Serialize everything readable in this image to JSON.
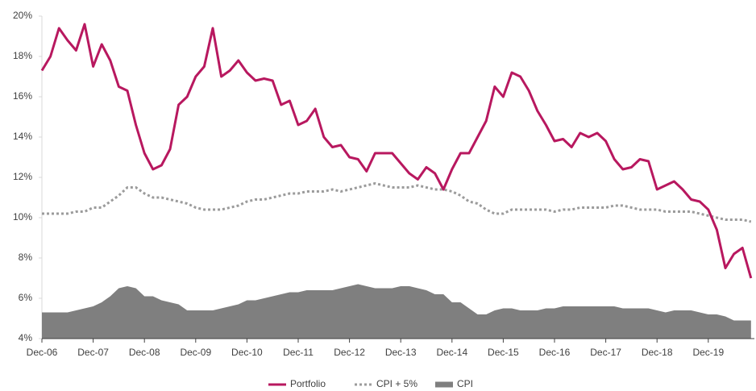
{
  "chart_data": {
    "type": "line",
    "categories": [
      "Dec-06",
      null,
      null,
      null,
      null,
      null,
      "Dec-07",
      null,
      null,
      null,
      null,
      null,
      "Dec-08",
      null,
      null,
      null,
      null,
      null,
      "Dec-09",
      null,
      null,
      null,
      null,
      null,
      "Dec-10",
      null,
      null,
      null,
      null,
      null,
      "Dec-11",
      null,
      null,
      null,
      null,
      null,
      "Dec-12",
      null,
      null,
      null,
      null,
      null,
      "Dec-13",
      null,
      null,
      null,
      null,
      null,
      "Dec-14",
      null,
      null,
      null,
      null,
      null,
      "Dec-15",
      null,
      null,
      null,
      null,
      null,
      "Dec-16",
      null,
      null,
      null,
      null,
      null,
      "Dec-17",
      null,
      null,
      null,
      null,
      null,
      "Dec-18",
      null,
      null,
      null,
      null,
      null,
      "Dec-19",
      null,
      null,
      null,
      null,
      null
    ],
    "series": [
      {
        "name": "Portfolio",
        "color": "#b8185f",
        "style": "line",
        "values": [
          17.3,
          18.0,
          19.4,
          18.8,
          18.3,
          19.6,
          17.5,
          18.6,
          17.8,
          16.5,
          16.3,
          14.6,
          13.2,
          12.4,
          12.6,
          13.4,
          15.6,
          16.0,
          17.0,
          17.5,
          19.4,
          17.0,
          17.3,
          17.8,
          17.2,
          16.8,
          16.9,
          16.8,
          15.6,
          15.8,
          14.6,
          14.8,
          15.4,
          14.0,
          13.5,
          13.6,
          13.0,
          12.9,
          12.3,
          13.2,
          13.2,
          13.2,
          12.7,
          12.2,
          11.9,
          12.5,
          12.2,
          11.4,
          12.4,
          13.2,
          13.2,
          14.0,
          14.8,
          16.5,
          16.0,
          17.2,
          17.0,
          16.3,
          15.3,
          14.6,
          13.8,
          13.9,
          13.5,
          14.2,
          14.0,
          14.2,
          13.8,
          12.9,
          12.4,
          12.5,
          12.9,
          12.8,
          11.4,
          11.6,
          11.8,
          11.4,
          10.9,
          10.8,
          10.4,
          9.4,
          7.5,
          8.2,
          8.5,
          7.0
        ]
      },
      {
        "name": "CPI + 5%",
        "color": "#9b9b9b",
        "style": "dotted",
        "values": [
          10.2,
          10.2,
          10.2,
          10.2,
          10.3,
          10.3,
          10.5,
          10.5,
          10.8,
          11.1,
          11.5,
          11.5,
          11.2,
          11.0,
          11.0,
          10.9,
          10.8,
          10.7,
          10.5,
          10.4,
          10.4,
          10.4,
          10.5,
          10.6,
          10.8,
          10.9,
          10.9,
          11.0,
          11.1,
          11.2,
          11.2,
          11.3,
          11.3,
          11.3,
          11.4,
          11.3,
          11.4,
          11.5,
          11.6,
          11.7,
          11.6,
          11.5,
          11.5,
          11.5,
          11.6,
          11.5,
          11.4,
          11.4,
          11.3,
          11.1,
          10.8,
          10.7,
          10.4,
          10.2,
          10.2,
          10.4,
          10.4,
          10.4,
          10.4,
          10.4,
          10.3,
          10.4,
          10.4,
          10.5,
          10.5,
          10.5,
          10.5,
          10.6,
          10.6,
          10.5,
          10.4,
          10.4,
          10.4,
          10.3,
          10.3,
          10.3,
          10.3,
          10.2,
          10.1,
          10.0,
          9.9,
          9.9,
          9.9,
          9.8
        ]
      },
      {
        "name": "CPI",
        "color": "#7f7f7f",
        "style": "area",
        "values": [
          5.3,
          5.3,
          5.3,
          5.3,
          5.4,
          5.5,
          5.6,
          5.8,
          6.1,
          6.5,
          6.6,
          6.5,
          6.1,
          6.1,
          5.9,
          5.8,
          5.7,
          5.4,
          5.4,
          5.4,
          5.4,
          5.5,
          5.6,
          5.7,
          5.9,
          5.9,
          6.0,
          6.1,
          6.2,
          6.3,
          6.3,
          6.4,
          6.4,
          6.4,
          6.4,
          6.5,
          6.6,
          6.7,
          6.6,
          6.5,
          6.5,
          6.5,
          6.6,
          6.6,
          6.5,
          6.4,
          6.2,
          6.2,
          5.8,
          5.8,
          5.5,
          5.2,
          5.2,
          5.4,
          5.5,
          5.5,
          5.4,
          5.4,
          5.4,
          5.5,
          5.5,
          5.6,
          5.6,
          5.6,
          5.6,
          5.6,
          5.6,
          5.6,
          5.5,
          5.5,
          5.5,
          5.5,
          5.4,
          5.3,
          5.4,
          5.4,
          5.4,
          5.3,
          5.2,
          5.2,
          5.1,
          4.9,
          4.9,
          4.9
        ]
      }
    ],
    "ylim": [
      4,
      20
    ],
    "yticks": [
      {
        "value": 4,
        "label": "4%"
      },
      {
        "value": 6,
        "label": "6%"
      },
      {
        "value": 8,
        "label": "8%"
      },
      {
        "value": 10,
        "label": "10%"
      },
      {
        "value": 12,
        "label": "12%"
      },
      {
        "value": 14,
        "label": "14%"
      },
      {
        "value": 16,
        "label": "16%"
      },
      {
        "value": 18,
        "label": "18%"
      },
      {
        "value": 20,
        "label": "20%"
      }
    ],
    "grid": false,
    "legend": "bottom"
  }
}
